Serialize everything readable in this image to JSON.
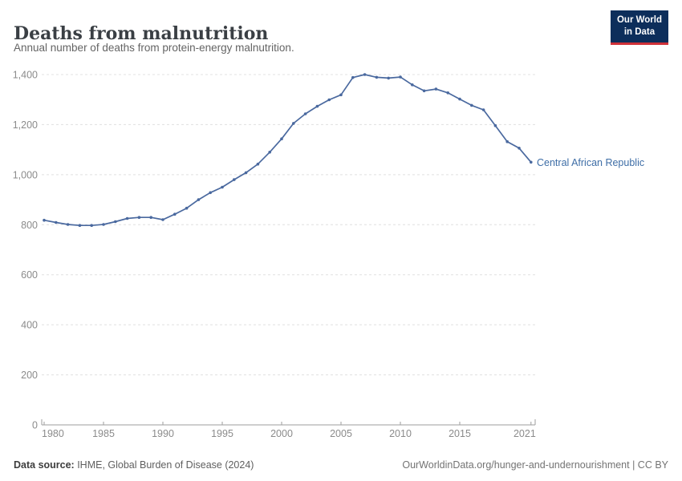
{
  "header": {
    "title": "Deaths from malnutrition",
    "subtitle": "Annual number of deaths from protein-energy malnutrition.",
    "logo": {
      "line1": "Our World",
      "line2": "in Data"
    }
  },
  "chart_data": {
    "type": "line",
    "title": "Deaths from malnutrition",
    "subtitle": "Annual number of deaths from protein-energy malnutrition.",
    "series": [
      {
        "name": "Central African Republic",
        "color": "#4a699f",
        "x": [
          1980,
          1981,
          1982,
          1983,
          1984,
          1985,
          1986,
          1987,
          1988,
          1989,
          1990,
          1991,
          1992,
          1993,
          1994,
          1995,
          1996,
          1997,
          1998,
          1999,
          2000,
          2001,
          2002,
          2003,
          2004,
          2005,
          2006,
          2007,
          2008,
          2009,
          2010,
          2011,
          2012,
          2013,
          2014,
          2015,
          2016,
          2017,
          2018,
          2019,
          2020,
          2021
        ],
        "values": [
          818,
          809,
          801,
          797,
          797,
          801,
          812,
          825,
          829,
          829,
          820,
          842,
          866,
          900,
          928,
          950,
          980,
          1008,
          1042,
          1090,
          1143,
          1205,
          1243,
          1273,
          1299,
          1319,
          1388,
          1400,
          1389,
          1386,
          1390,
          1359,
          1335,
          1342,
          1327,
          1302,
          1277,
          1259,
          1196,
          1132,
          1106,
          1050
        ]
      }
    ],
    "xlabel": "",
    "ylabel": "",
    "xlim": [
      1980,
      2021
    ],
    "ylim": [
      0,
      1400
    ],
    "xticks": [
      1980,
      1985,
      1990,
      1995,
      2000,
      2005,
      2010,
      2015,
      2021
    ],
    "yticks": [
      0,
      200,
      400,
      600,
      800,
      1000,
      1200,
      1400
    ],
    "grid": "horizontal-dashed",
    "legend": "end-of-line-label"
  },
  "footer": {
    "source_label": "Data source:",
    "source_value": " IHME, Global Burden of Disease (2024)",
    "attribution": "OurWorldinData.org/hunger-and-undernourishment | CC BY"
  },
  "colors": {
    "line": "#4a699f",
    "entity_label": "#3d6da6",
    "logo_background": "#0d2e5b",
    "logo_red": "#cf3139",
    "grid": "#e0e0e0",
    "axis": "#9e9e9e",
    "tick_text": "#8b8b8b"
  }
}
